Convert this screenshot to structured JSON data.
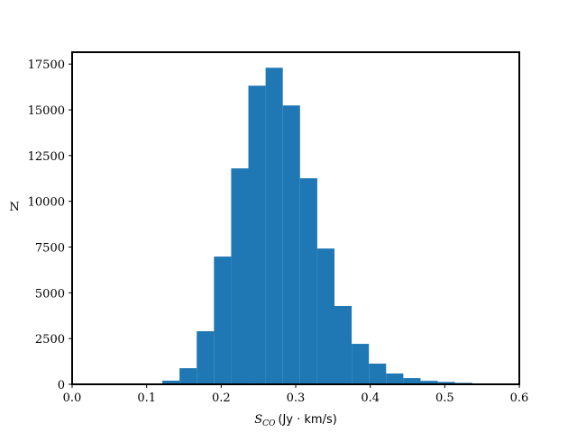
{
  "chart_data": {
    "type": "histogram",
    "x_label": {
      "symbol": "S",
      "subscript": "CO",
      "unit": "(Jy · km/s)"
    },
    "y_label": "N",
    "bins": [
      0.121,
      0.1441,
      0.1672,
      0.1903,
      0.2134,
      0.2365,
      0.2596,
      0.2827,
      0.3058,
      0.3289,
      0.352,
      0.3751,
      0.3982,
      0.4213,
      0.4444,
      0.4675,
      0.4906,
      0.5137,
      0.5368,
      0.5599,
      0.583
    ],
    "values": [
      200,
      880,
      2900,
      6980,
      11800,
      16320,
      17300,
      15240,
      11260,
      7420,
      4280,
      2210,
      1130,
      590,
      340,
      190,
      130,
      80,
      30,
      10
    ],
    "color": "#1f77b4",
    "xlim": [
      0,
      0.6
    ],
    "xticks": [
      {
        "value": 0,
        "label": "0.0"
      },
      {
        "value": 0.1,
        "label": "0.1"
      },
      {
        "value": 0.2,
        "label": "0.2"
      },
      {
        "value": 0.3,
        "label": "0.3"
      },
      {
        "value": 0.4,
        "label": "0.4"
      },
      {
        "value": 0.5,
        "label": "0.5"
      },
      {
        "value": 0.6,
        "label": "0.6"
      }
    ],
    "ylim": [
      0,
      18150
    ],
    "yticks": [
      0,
      2500,
      5000,
      7500,
      10000,
      12500,
      15000,
      17500
    ],
    "grid": false
  }
}
